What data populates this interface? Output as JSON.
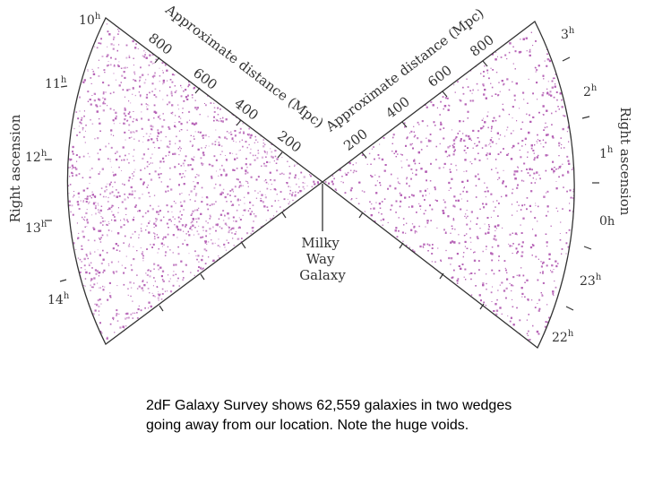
{
  "diagram": {
    "wedge_color": "#b45fb4",
    "left_distance_label": "Approximate distance (Mpc)",
    "right_distance_label": "Approximate distance (Mpc)",
    "left_distance_ticks": [
      "800",
      "600",
      "400",
      "200"
    ],
    "right_distance_ticks": [
      "200",
      "400",
      "600",
      "800"
    ],
    "left_hours": [
      {
        "num": "10",
        "sup": "h"
      },
      {
        "num": "11",
        "sup": "h"
      },
      {
        "num": "12",
        "sup": "h"
      },
      {
        "num": "13",
        "sup": "h"
      },
      {
        "num": "14",
        "sup": "h"
      }
    ],
    "right_hours": [
      {
        "num": "3",
        "sup": "h"
      },
      {
        "num": "2",
        "sup": "h"
      },
      {
        "num": "1",
        "sup": "h"
      },
      {
        "num": "0",
        "sup": "h"
      },
      {
        "num": "23",
        "sup": "h"
      },
      {
        "num": "22",
        "sup": "h"
      }
    ],
    "left_axis_title": "Right ascension",
    "right_axis_title": "Right ascension",
    "milky_way_lines": [
      "Milky",
      "Way",
      "Galaxy"
    ]
  },
  "caption": {
    "line1": "2dF Galaxy Survey shows 62,559 galaxies in two wedges",
    "line2": "going away from our location.  Note the huge voids."
  }
}
